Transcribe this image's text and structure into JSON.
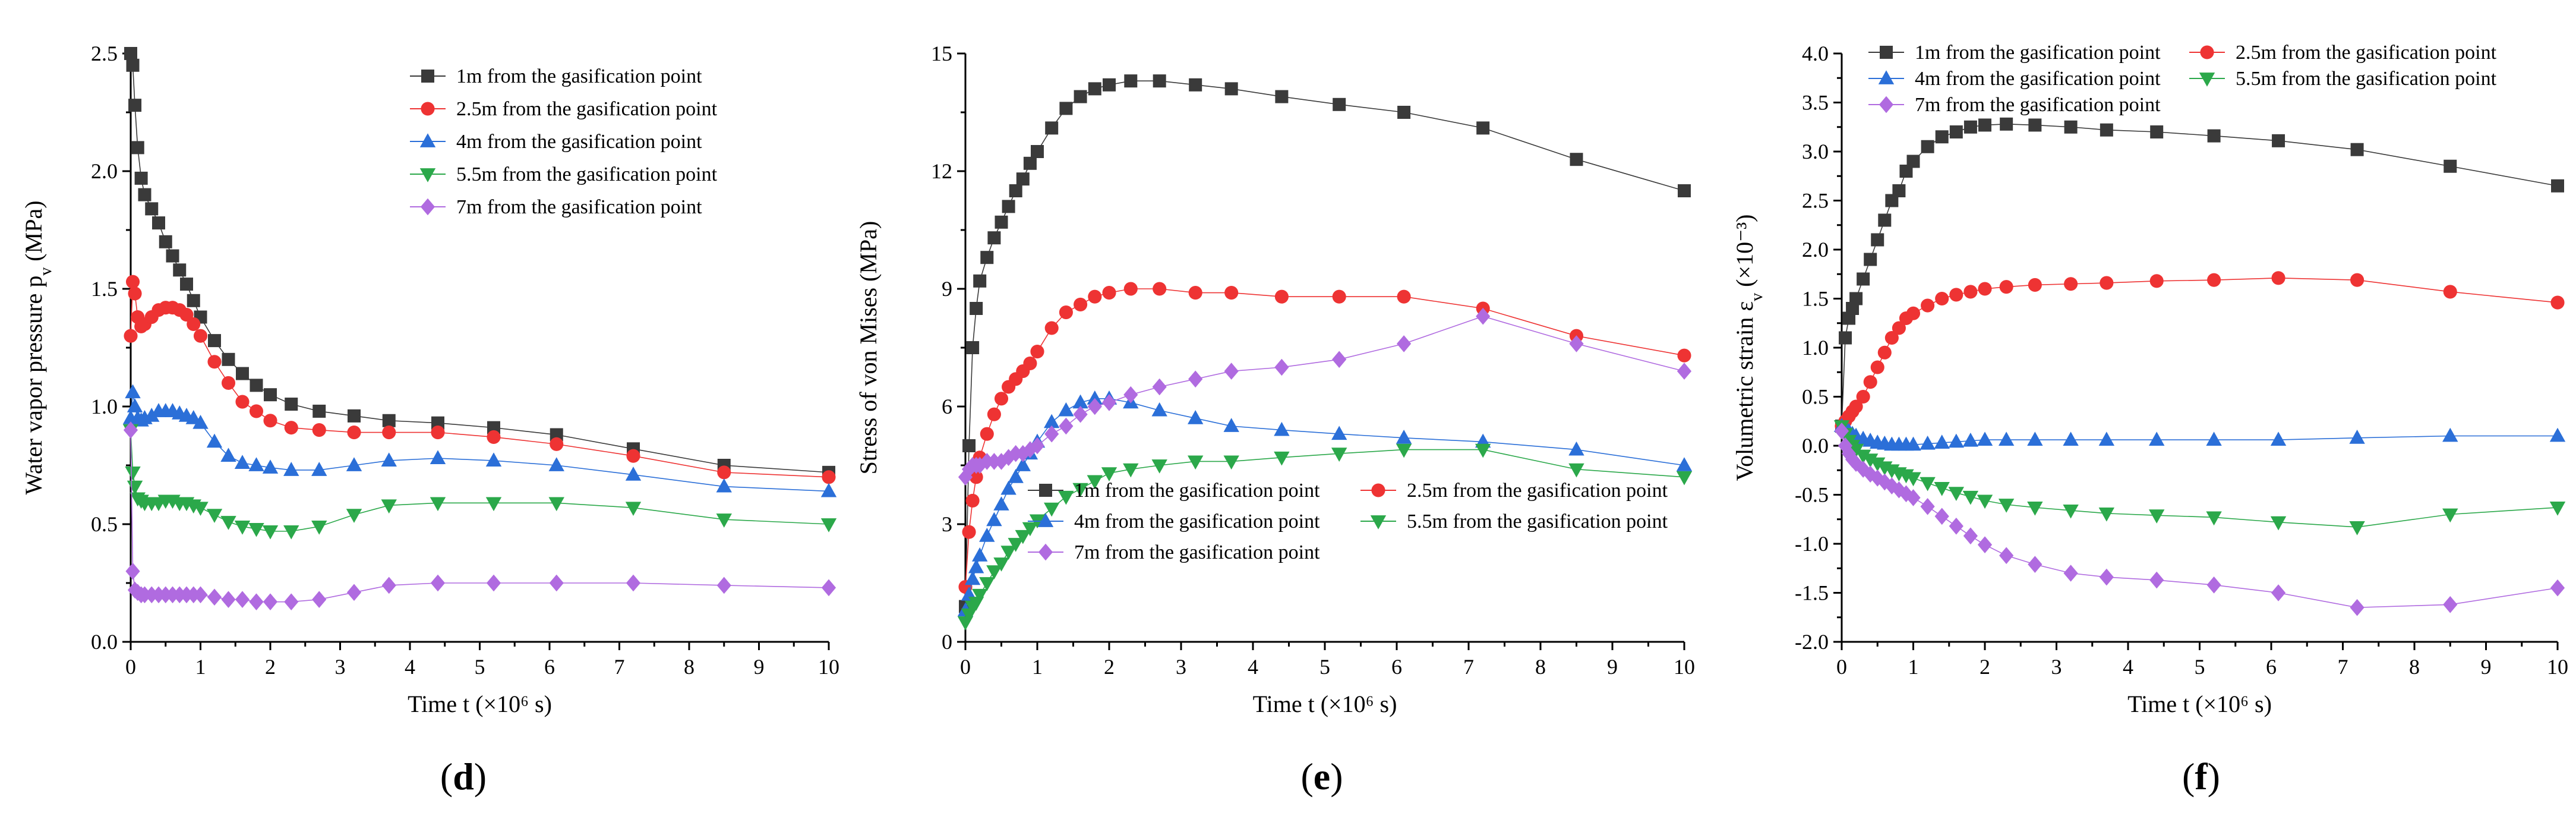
{
  "chart_data": [
    {
      "type": "line",
      "panel_label": "d",
      "xlabel": "Time t (×10⁶ s)",
      "ylabel": "Water vapor pressure p",
      "ylabel_sub": "v",
      "ylabel_unit": " (MPa)",
      "xlim": [
        0,
        10
      ],
      "ylim": [
        0,
        2.5
      ],
      "xticks": [
        "0",
        "1",
        "2",
        "3",
        "4",
        "5",
        "6",
        "7",
        "8",
        "9",
        "10"
      ],
      "yticks": [
        "0.0",
        "0.5",
        "1.0",
        "1.5",
        "2.0",
        "2.5"
      ],
      "legend_position": "top-right",
      "series": [
        {
          "name": "1m from the gasification point",
          "color": "#3a3a3a",
          "marker": "square",
          "x": [
            0,
            0.03,
            0.06,
            0.1,
            0.15,
            0.2,
            0.3,
            0.4,
            0.5,
            0.6,
            0.7,
            0.8,
            0.9,
            1.0,
            1.2,
            1.4,
            1.6,
            1.8,
            2.0,
            2.3,
            2.7,
            3.2,
            3.7,
            4.4,
            5.2,
            6.1,
            7.2,
            8.5,
            10
          ],
          "y": [
            2.5,
            2.45,
            2.28,
            2.1,
            1.97,
            1.9,
            1.84,
            1.78,
            1.7,
            1.64,
            1.58,
            1.52,
            1.45,
            1.38,
            1.28,
            1.2,
            1.14,
            1.09,
            1.05,
            1.01,
            0.98,
            0.96,
            0.94,
            0.93,
            0.91,
            0.88,
            0.82,
            0.75,
            0.72
          ]
        },
        {
          "name": "2.5m from the gasification point",
          "color": "#ee3333",
          "marker": "circle",
          "x": [
            0,
            0.03,
            0.06,
            0.1,
            0.15,
            0.2,
            0.3,
            0.4,
            0.5,
            0.6,
            0.7,
            0.8,
            0.9,
            1.0,
            1.2,
            1.4,
            1.6,
            1.8,
            2.0,
            2.3,
            2.7,
            3.2,
            3.7,
            4.4,
            5.2,
            6.1,
            7.2,
            8.5,
            10
          ],
          "y": [
            1.3,
            1.53,
            1.48,
            1.38,
            1.34,
            1.35,
            1.38,
            1.41,
            1.42,
            1.42,
            1.41,
            1.39,
            1.35,
            1.3,
            1.19,
            1.1,
            1.02,
            0.98,
            0.94,
            0.91,
            0.9,
            0.89,
            0.89,
            0.89,
            0.87,
            0.84,
            0.79,
            0.72,
            0.7
          ]
        },
        {
          "name": "4m from the gasification point",
          "color": "#2b6fd8",
          "marker": "triangle-up",
          "x": [
            0,
            0.03,
            0.06,
            0.1,
            0.15,
            0.2,
            0.3,
            0.4,
            0.5,
            0.6,
            0.7,
            0.8,
            0.9,
            1.0,
            1.2,
            1.4,
            1.6,
            1.8,
            2.0,
            2.3,
            2.7,
            3.2,
            3.7,
            4.4,
            5.2,
            6.1,
            7.2,
            8.5,
            10
          ],
          "y": [
            0.95,
            1.06,
            1.0,
            0.95,
            0.94,
            0.95,
            0.96,
            0.98,
            0.98,
            0.98,
            0.97,
            0.96,
            0.95,
            0.93,
            0.85,
            0.79,
            0.76,
            0.75,
            0.74,
            0.73,
            0.73,
            0.75,
            0.77,
            0.78,
            0.77,
            0.75,
            0.71,
            0.66,
            0.64
          ]
        },
        {
          "name": "5.5m from the gasification point",
          "color": "#2ba84a",
          "marker": "triangle-down",
          "x": [
            0,
            0.03,
            0.06,
            0.1,
            0.15,
            0.2,
            0.3,
            0.4,
            0.5,
            0.6,
            0.7,
            0.8,
            0.9,
            1.0,
            1.2,
            1.4,
            1.6,
            1.8,
            2.0,
            2.3,
            2.7,
            3.2,
            3.7,
            4.4,
            5.2,
            6.1,
            7.2,
            8.5,
            10
          ],
          "y": [
            0.9,
            0.72,
            0.66,
            0.61,
            0.6,
            0.59,
            0.59,
            0.59,
            0.6,
            0.6,
            0.59,
            0.59,
            0.58,
            0.57,
            0.54,
            0.51,
            0.49,
            0.48,
            0.47,
            0.47,
            0.49,
            0.54,
            0.58,
            0.59,
            0.59,
            0.59,
            0.57,
            0.52,
            0.5
          ]
        },
        {
          "name": "7m from the gasification point",
          "color": "#b06be0",
          "marker": "diamond",
          "x": [
            0,
            0.03,
            0.06,
            0.1,
            0.15,
            0.2,
            0.3,
            0.4,
            0.5,
            0.6,
            0.7,
            0.8,
            0.9,
            1.0,
            1.2,
            1.4,
            1.6,
            1.8,
            2.0,
            2.3,
            2.7,
            3.2,
            3.7,
            4.4,
            5.2,
            6.1,
            7.2,
            8.5,
            10
          ],
          "y": [
            0.9,
            0.3,
            0.22,
            0.21,
            0.2,
            0.2,
            0.2,
            0.2,
            0.2,
            0.2,
            0.2,
            0.2,
            0.2,
            0.2,
            0.19,
            0.18,
            0.18,
            0.17,
            0.17,
            0.17,
            0.18,
            0.21,
            0.24,
            0.25,
            0.25,
            0.25,
            0.25,
            0.24,
            0.23
          ]
        }
      ]
    },
    {
      "type": "line",
      "panel_label": "e",
      "xlabel": "Time t (×10⁶ s)",
      "ylabel": "Stress of von Mises (MPa)",
      "ylabel_sub": "",
      "ylabel_unit": "",
      "xlim": [
        0,
        10
      ],
      "ylim": [
        0,
        15
      ],
      "xticks": [
        "0",
        "1",
        "2",
        "3",
        "4",
        "5",
        "6",
        "7",
        "8",
        "9",
        "10"
      ],
      "yticks": [
        "0",
        "3",
        "6",
        "9",
        "12",
        "15"
      ],
      "legend_position": "bottom-right",
      "series": [
        {
          "name": "1m from the gasification point",
          "color": "#3a3a3a",
          "marker": "square",
          "x": [
            0,
            0.05,
            0.1,
            0.15,
            0.2,
            0.3,
            0.4,
            0.5,
            0.6,
            0.7,
            0.8,
            0.9,
            1.0,
            1.2,
            1.4,
            1.6,
            1.8,
            2.0,
            2.3,
            2.7,
            3.2,
            3.7,
            4.4,
            5.2,
            6.1,
            7.2,
            8.5,
            10
          ],
          "y": [
            0.9,
            5.0,
            7.5,
            8.5,
            9.2,
            9.8,
            10.3,
            10.7,
            11.1,
            11.5,
            11.8,
            12.2,
            12.5,
            13.1,
            13.6,
            13.9,
            14.1,
            14.2,
            14.3,
            14.3,
            14.2,
            14.1,
            13.9,
            13.7,
            13.5,
            13.1,
            12.3,
            11.5
          ]
        },
        {
          "name": "2.5m from the gasification point",
          "color": "#ee3333",
          "marker": "circle",
          "x": [
            0,
            0.05,
            0.1,
            0.15,
            0.2,
            0.3,
            0.4,
            0.5,
            0.6,
            0.7,
            0.8,
            0.9,
            1.0,
            1.2,
            1.4,
            1.6,
            1.8,
            2.0,
            2.3,
            2.7,
            3.2,
            3.7,
            4.4,
            5.2,
            6.1,
            7.2,
            8.5,
            10
          ],
          "y": [
            1.4,
            2.8,
            3.6,
            4.2,
            4.7,
            5.3,
            5.8,
            6.2,
            6.5,
            6.7,
            6.9,
            7.1,
            7.4,
            8.0,
            8.4,
            8.6,
            8.8,
            8.9,
            9.0,
            9.0,
            8.9,
            8.9,
            8.8,
            8.8,
            8.8,
            8.5,
            7.8,
            7.3
          ]
        },
        {
          "name": "4m from the gasification point",
          "color": "#2b6fd8",
          "marker": "triangle-up",
          "x": [
            0,
            0.05,
            0.1,
            0.15,
            0.2,
            0.3,
            0.4,
            0.5,
            0.6,
            0.7,
            0.8,
            0.9,
            1.0,
            1.2,
            1.4,
            1.6,
            1.8,
            2.0,
            2.3,
            2.7,
            3.2,
            3.7,
            4.4,
            5.2,
            6.1,
            7.2,
            8.5,
            10
          ],
          "y": [
            0.8,
            1.2,
            1.6,
            1.9,
            2.2,
            2.7,
            3.1,
            3.5,
            3.9,
            4.2,
            4.5,
            4.8,
            5.1,
            5.6,
            5.9,
            6.1,
            6.2,
            6.2,
            6.1,
            5.9,
            5.7,
            5.5,
            5.4,
            5.3,
            5.2,
            5.1,
            4.9,
            4.5
          ]
        },
        {
          "name": "5.5m from the gasification point",
          "color": "#2ba84a",
          "marker": "triangle-down",
          "x": [
            0,
            0.05,
            0.1,
            0.15,
            0.2,
            0.3,
            0.4,
            0.5,
            0.6,
            0.7,
            0.8,
            0.9,
            1.0,
            1.2,
            1.4,
            1.6,
            1.8,
            2.0,
            2.3,
            2.7,
            3.2,
            3.7,
            4.4,
            5.2,
            6.1,
            7.2,
            8.5,
            10
          ],
          "y": [
            0.5,
            0.7,
            0.9,
            1.0,
            1.2,
            1.5,
            1.8,
            2.0,
            2.3,
            2.5,
            2.7,
            2.9,
            3.1,
            3.4,
            3.7,
            3.9,
            4.1,
            4.3,
            4.4,
            4.5,
            4.6,
            4.6,
            4.7,
            4.8,
            4.9,
            4.9,
            4.4,
            4.2
          ]
        },
        {
          "name": "7m from the gasification point",
          "color": "#b06be0",
          "marker": "diamond",
          "x": [
            0,
            0.05,
            0.1,
            0.15,
            0.2,
            0.3,
            0.4,
            0.5,
            0.6,
            0.7,
            0.8,
            0.9,
            1.0,
            1.2,
            1.4,
            1.6,
            1.8,
            2.0,
            2.3,
            2.7,
            3.2,
            3.7,
            4.4,
            5.2,
            6.1,
            7.2,
            8.5,
            10
          ],
          "y": [
            4.2,
            4.4,
            4.5,
            4.5,
            4.5,
            4.6,
            4.6,
            4.6,
            4.7,
            4.8,
            4.8,
            4.9,
            5.0,
            5.3,
            5.5,
            5.8,
            6.0,
            6.1,
            6.3,
            6.5,
            6.7,
            6.9,
            7.0,
            7.2,
            7.6,
            8.3,
            7.6,
            6.9
          ]
        }
      ]
    },
    {
      "type": "line",
      "panel_label": "f",
      "xlabel": "Time t (×10⁶ s)",
      "ylabel": "Volumetric strain ε",
      "ylabel_sub": "v",
      "ylabel_unit": " (×10⁻³)",
      "xlim": [
        0,
        10
      ],
      "ylim": [
        -2.0,
        4.0
      ],
      "xticks": [
        "0",
        "1",
        "2",
        "3",
        "4",
        "5",
        "6",
        "7",
        "8",
        "9",
        "10"
      ],
      "yticks": [
        "-2.0",
        "-1.5",
        "-1.0",
        "-0.5",
        "0.0",
        "0.5",
        "1.0",
        "1.5",
        "2.0",
        "2.5",
        "3.0",
        "3.5",
        "4.0"
      ],
      "legend_position": "top",
      "series": [
        {
          "name": "1m from the gasification point",
          "color": "#3a3a3a",
          "marker": "square",
          "x": [
            0,
            0.05,
            0.1,
            0.15,
            0.2,
            0.3,
            0.4,
            0.5,
            0.6,
            0.7,
            0.8,
            0.9,
            1.0,
            1.2,
            1.4,
            1.6,
            1.8,
            2.0,
            2.3,
            2.7,
            3.2,
            3.7,
            4.4,
            5.2,
            6.1,
            7.2,
            8.5,
            10
          ],
          "y": [
            0.2,
            1.1,
            1.3,
            1.4,
            1.5,
            1.7,
            1.9,
            2.1,
            2.3,
            2.5,
            2.6,
            2.8,
            2.9,
            3.05,
            3.15,
            3.2,
            3.25,
            3.27,
            3.28,
            3.27,
            3.25,
            3.22,
            3.2,
            3.16,
            3.11,
            3.02,
            2.85,
            2.65
          ]
        },
        {
          "name": "2.5m from the gasification point",
          "color": "#ee3333",
          "marker": "circle",
          "x": [
            0,
            0.05,
            0.1,
            0.15,
            0.2,
            0.3,
            0.4,
            0.5,
            0.6,
            0.7,
            0.8,
            0.9,
            1.0,
            1.2,
            1.4,
            1.6,
            1.8,
            2.0,
            2.3,
            2.7,
            3.2,
            3.7,
            4.4,
            5.2,
            6.1,
            7.2,
            8.5,
            10
          ],
          "y": [
            0.2,
            0.25,
            0.3,
            0.35,
            0.4,
            0.5,
            0.65,
            0.8,
            0.95,
            1.1,
            1.2,
            1.3,
            1.35,
            1.43,
            1.5,
            1.54,
            1.57,
            1.6,
            1.62,
            1.64,
            1.65,
            1.66,
            1.68,
            1.69,
            1.71,
            1.69,
            1.57,
            1.46
          ]
        },
        {
          "name": "4m from the gasification point",
          "color": "#2b6fd8",
          "marker": "triangle-up",
          "x": [
            0,
            0.05,
            0.1,
            0.15,
            0.2,
            0.3,
            0.4,
            0.5,
            0.6,
            0.7,
            0.8,
            0.9,
            1.0,
            1.2,
            1.4,
            1.6,
            1.8,
            2.0,
            2.3,
            2.7,
            3.2,
            3.7,
            4.4,
            5.2,
            6.1,
            7.2,
            8.5,
            10
          ],
          "y": [
            0.2,
            0.18,
            0.15,
            0.12,
            0.1,
            0.07,
            0.05,
            0.03,
            0.02,
            0.01,
            0.01,
            0.01,
            0.01,
            0.02,
            0.03,
            0.04,
            0.05,
            0.06,
            0.06,
            0.06,
            0.06,
            0.06,
            0.06,
            0.06,
            0.06,
            0.08,
            0.1,
            0.1
          ]
        },
        {
          "name": "5.5m from the gasification point",
          "color": "#2ba84a",
          "marker": "triangle-down",
          "x": [
            0,
            0.05,
            0.1,
            0.15,
            0.2,
            0.3,
            0.4,
            0.5,
            0.6,
            0.7,
            0.8,
            0.9,
            1.0,
            1.2,
            1.4,
            1.6,
            1.8,
            2.0,
            2.3,
            2.7,
            3.2,
            3.7,
            4.4,
            5.2,
            6.1,
            7.2,
            8.5,
            10
          ],
          "y": [
            0.2,
            0.12,
            0.05,
            0.0,
            -0.04,
            -0.1,
            -0.14,
            -0.18,
            -0.22,
            -0.25,
            -0.28,
            -0.3,
            -0.33,
            -0.38,
            -0.43,
            -0.48,
            -0.52,
            -0.56,
            -0.6,
            -0.63,
            -0.66,
            -0.69,
            -0.71,
            -0.73,
            -0.78,
            -0.83,
            -0.7,
            -0.63
          ]
        },
        {
          "name": "7m from the gasification point",
          "color": "#b06be0",
          "marker": "diamond",
          "x": [
            0,
            0.05,
            0.1,
            0.15,
            0.2,
            0.3,
            0.4,
            0.5,
            0.6,
            0.7,
            0.8,
            0.9,
            1.0,
            1.2,
            1.4,
            1.6,
            1.8,
            2.0,
            2.3,
            2.7,
            3.2,
            3.7,
            4.4,
            5.2,
            6.1,
            7.2,
            8.5,
            10
          ],
          "y": [
            0.15,
            0.0,
            -0.08,
            -0.14,
            -0.18,
            -0.24,
            -0.29,
            -0.33,
            -0.37,
            -0.41,
            -0.45,
            -0.49,
            -0.53,
            -0.62,
            -0.72,
            -0.82,
            -0.92,
            -1.01,
            -1.12,
            -1.21,
            -1.3,
            -1.34,
            -1.37,
            -1.42,
            -1.5,
            -1.65,
            -1.62,
            -1.45
          ]
        }
      ]
    }
  ]
}
